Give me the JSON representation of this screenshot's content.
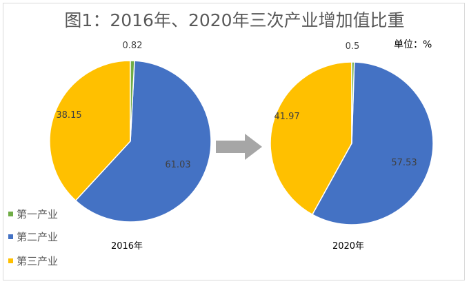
{
  "chart_data": [
    {
      "type": "pie",
      "title": "图1：2016年、2020年三次产业增加值比重",
      "unit": "单位：%",
      "xlabel": "2016年",
      "categories": [
        "第一产业",
        "第二产业",
        "第三产业"
      ],
      "values": [
        0.82,
        61.03,
        38.15
      ],
      "labels": [
        "0.82",
        "61.03",
        "38.15"
      ],
      "colors": [
        "#70ad47",
        "#4472c4",
        "#ffc000"
      ],
      "legend": "bottom-left"
    },
    {
      "type": "pie",
      "xlabel": "2020年",
      "categories": [
        "第一产业",
        "第二产业",
        "第三产业"
      ],
      "values": [
        0.5,
        57.53,
        41.97
      ],
      "labels": [
        "0.5",
        "57.53",
        "41.97"
      ],
      "colors": [
        "#70ad47",
        "#4472c4",
        "#ffc000"
      ]
    }
  ],
  "arrow_icon": "right-arrow-icon",
  "arrow_color": "#a6a6a6"
}
